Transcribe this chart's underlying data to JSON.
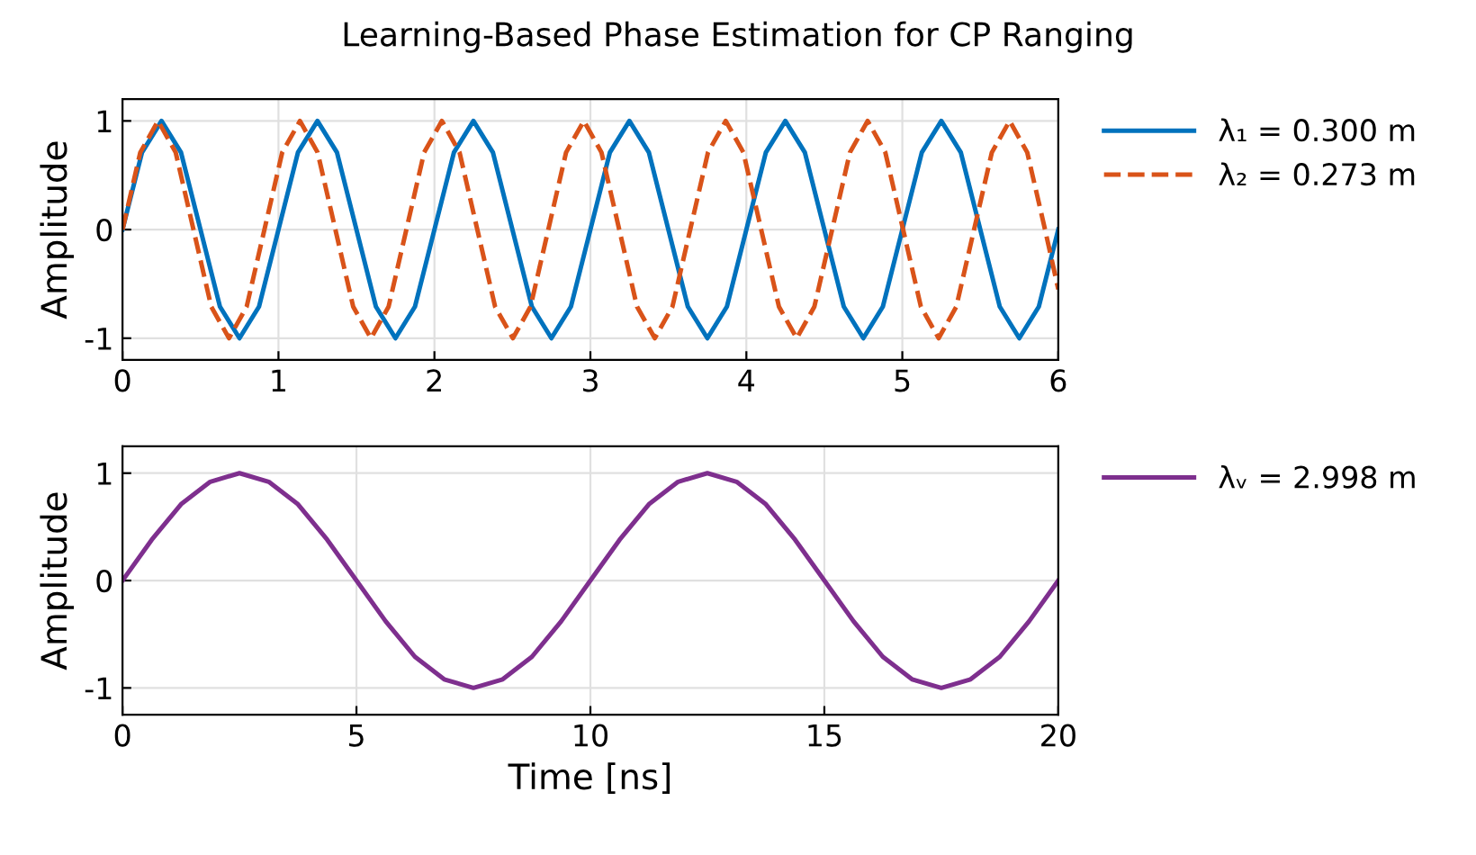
{
  "chart_data": [
    {
      "type": "line",
      "title": "Learning-Based Phase Estimation for CP Ranging",
      "ylabel": "Amplitude",
      "xlim": [
        0,
        6
      ],
      "xticks": [
        0,
        1,
        2,
        3,
        4,
        5,
        6
      ],
      "ylim": [
        -1.2,
        1.2
      ],
      "yticks": [
        -1,
        0,
        1
      ],
      "grid": true,
      "legend": "right",
      "series": [
        {
          "name": "λ₁ = 0.300 m",
          "color": "#0072bd",
          "line_style": "solid",
          "x": [
            0,
            0.125,
            0.25,
            0.375,
            0.5,
            0.625,
            0.75,
            0.875,
            1,
            1.125,
            1.25,
            1.375,
            1.5,
            1.625,
            1.75,
            1.875,
            2,
            2.125,
            2.25,
            2.375,
            2.5,
            2.625,
            2.75,
            2.875,
            3,
            3.125,
            3.25,
            3.375,
            3.5,
            3.625,
            3.75,
            3.875,
            4,
            4.125,
            4.25,
            4.375,
            4.5,
            4.625,
            4.75,
            4.875,
            5,
            5.125,
            5.25,
            5.375,
            5.5,
            5.625,
            5.75,
            5.875,
            6
          ],
          "values": [
            0,
            0.71,
            1,
            0.71,
            0,
            -0.71,
            -1,
            -0.71,
            0,
            0.71,
            1,
            0.71,
            0,
            -0.71,
            -1,
            -0.71,
            0,
            0.71,
            1,
            0.71,
            0,
            -0.71,
            -1,
            -0.71,
            0,
            0.71,
            1,
            0.71,
            0,
            -0.71,
            -1,
            -0.71,
            0,
            0.71,
            1,
            0.71,
            0,
            -0.71,
            -1,
            -0.71,
            0,
            0.71,
            1,
            0.71,
            0,
            -0.71,
            -1,
            -0.71,
            0
          ]
        },
        {
          "name": "λ₂ = 0.273 m",
          "color": "#d95319",
          "line_style": "dashed",
          "x": [
            0,
            0.114,
            0.228,
            0.341,
            0.455,
            0.569,
            0.683,
            0.796,
            0.91,
            1.024,
            1.138,
            1.251,
            1.365,
            1.479,
            1.593,
            1.706,
            1.82,
            1.934,
            2.048,
            2.161,
            2.275,
            2.389,
            2.503,
            2.616,
            2.73,
            2.844,
            2.958,
            3.071,
            3.185,
            3.299,
            3.413,
            3.526,
            3.64,
            3.754,
            3.868,
            3.981,
            4.095,
            4.209,
            4.323,
            4.436,
            4.55,
            4.664,
            4.778,
            4.891,
            5.005,
            5.119,
            5.233,
            5.346,
            5.46,
            5.574,
            5.688,
            5.801,
            5.915,
            6
          ],
          "values": [
            0,
            0.71,
            1,
            0.71,
            0,
            -0.71,
            -1,
            -0.71,
            0,
            0.71,
            1,
            0.71,
            0,
            -0.71,
            -1,
            -0.71,
            0,
            0.71,
            1,
            0.71,
            0,
            -0.71,
            -1,
            -0.71,
            0,
            0.71,
            1,
            0.71,
            0,
            -0.71,
            -1,
            -0.71,
            0,
            0.71,
            1,
            0.71,
            0,
            -0.71,
            -1,
            -0.71,
            0,
            0.71,
            1,
            0.71,
            0,
            -0.71,
            -1,
            -0.71,
            0,
            0.71,
            1,
            0.71,
            0,
            -0.55
          ]
        }
      ]
    },
    {
      "type": "line",
      "xlabel": "Time [ns]",
      "ylabel": "Amplitude",
      "xlim": [
        0,
        20
      ],
      "xticks": [
        0,
        5,
        10,
        15,
        20
      ],
      "ylim": [
        -1.25,
        1.25
      ],
      "yticks": [
        -1,
        0,
        1
      ],
      "grid": true,
      "legend": "right",
      "series": [
        {
          "name": "λᵥ = 2.998 m",
          "color": "#7e2f8e",
          "line_style": "solid",
          "x": [
            0,
            0.625,
            1.25,
            1.875,
            2.5,
            3.125,
            3.75,
            4.375,
            5,
            5.625,
            6.25,
            6.875,
            7.5,
            8.125,
            8.75,
            9.375,
            10,
            10.625,
            11.25,
            11.875,
            12.5,
            13.125,
            13.75,
            14.375,
            15,
            15.625,
            16.25,
            16.875,
            17.5,
            18.125,
            18.75,
            19.375,
            20
          ],
          "values": [
            0,
            0.38,
            0.71,
            0.92,
            1,
            0.92,
            0.71,
            0.38,
            0,
            -0.38,
            -0.71,
            -0.92,
            -1,
            -0.92,
            -0.71,
            -0.38,
            0,
            0.38,
            0.71,
            0.92,
            1,
            0.92,
            0.71,
            0.38,
            0,
            -0.38,
            -0.71,
            -0.92,
            -1,
            -0.92,
            -0.71,
            -0.38,
            0
          ]
        }
      ]
    }
  ]
}
